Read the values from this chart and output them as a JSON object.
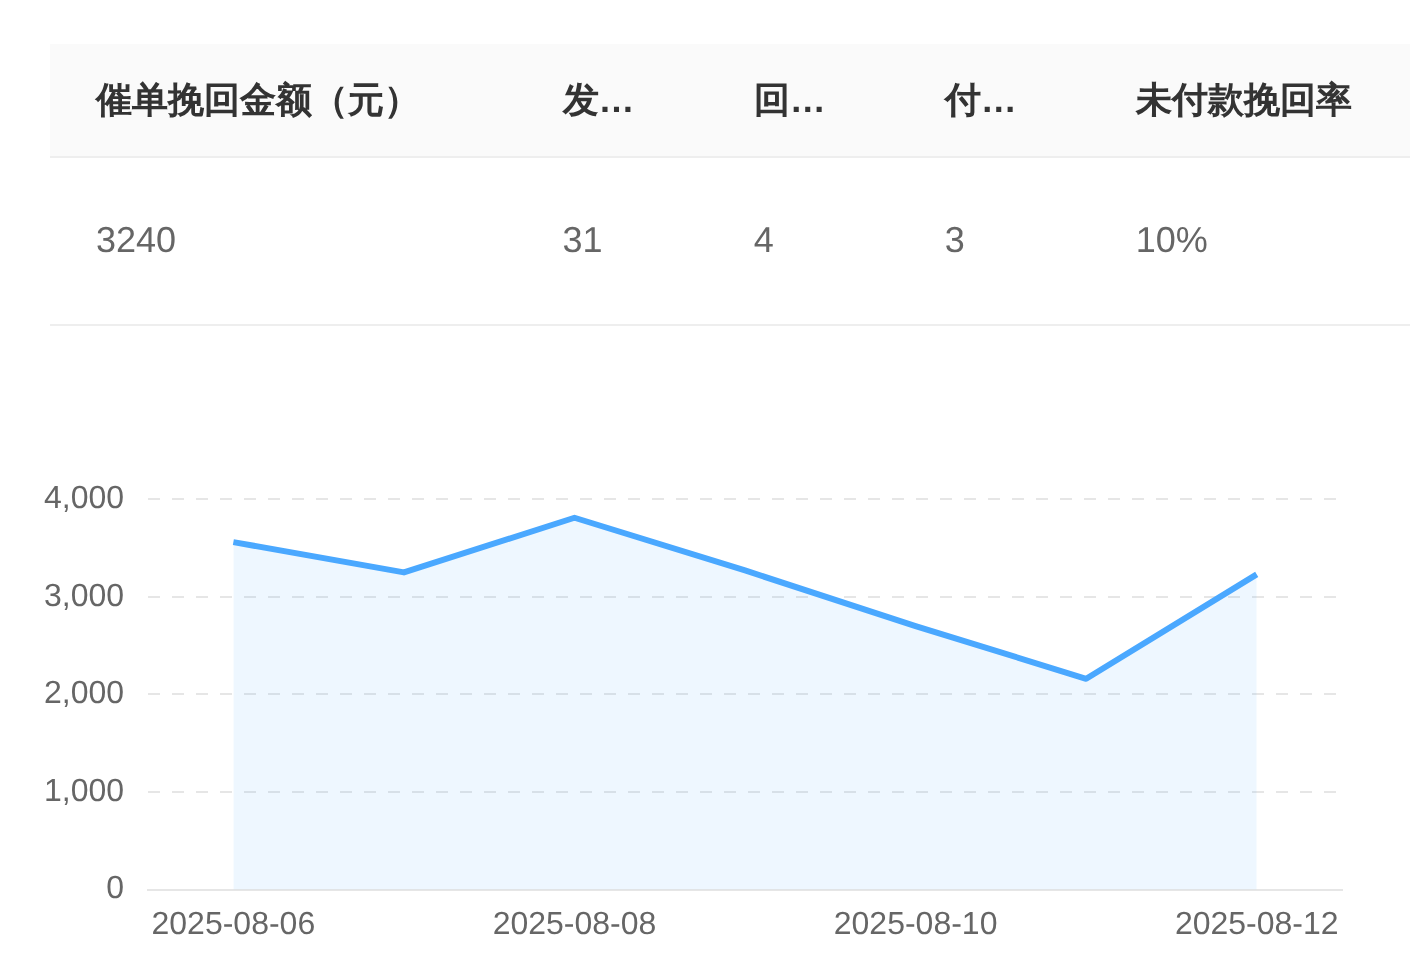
{
  "chart_data": [
    {
      "type": "other",
      "categories": [
        "催单挽回金额（元）",
        "发…",
        "回…",
        "付…",
        "未付款挽回率"
      ],
      "value_labels": [
        "3240",
        "31",
        "4",
        "3",
        "10%"
      ]
    },
    {
      "type": "area",
      "categories": [
        "2025-08-06",
        null,
        "2025-08-08",
        null,
        "2025-08-10",
        null,
        "2025-08-12"
      ],
      "series": [
        {
          "color": "#4aa8ff",
          "values": [
            3560,
            3250,
            3810,
            3270,
            2700,
            2160,
            3230
          ]
        }
      ],
      "ylim": [
        0,
        4000
      ],
      "yticks": [
        {
          "value": 0,
          "label": "0"
        },
        {
          "value": 1000,
          "label": "1,000"
        },
        {
          "value": 2000,
          "label": "2,000"
        },
        {
          "value": 3000,
          "label": "3,000"
        },
        {
          "value": 4000,
          "label": "4,000"
        }
      ],
      "grid": "y",
      "marker": "none",
      "legend": false
    }
  ]
}
